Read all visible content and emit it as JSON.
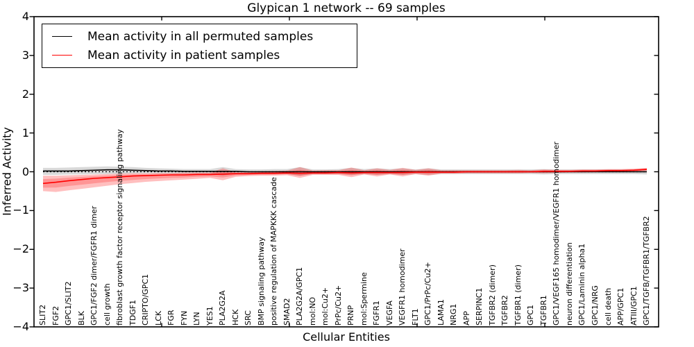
{
  "chart_data": {
    "type": "line",
    "title": "Glypican 1 network -- 69 samples",
    "xlabel": "Cellular Entities",
    "ylabel": "Inferred Activity",
    "ylim": [
      -4,
      4
    ],
    "yticks": [
      4,
      3,
      2,
      1,
      0,
      -1,
      -2,
      -3,
      -4
    ],
    "ytick_labels": [
      "4",
      "3",
      "2",
      "1",
      "0",
      "−1",
      "−2",
      "−3",
      "−4"
    ],
    "grid": false,
    "legend_position": "upper left",
    "zero_line": {
      "y": 0,
      "style": "dotted",
      "color": "#000000"
    },
    "categories": [
      "SLIT2",
      "FGF2",
      "GPC1/SLIT2",
      "BLK",
      "GPC1/FGF2 dimer/FGFR1 dimer",
      "cell growth",
      "fibroblast growth factor receptor signaling pathway",
      "TDGF1",
      "CRIPTO/GPC1",
      "LCK",
      "FGR",
      "FYN",
      "LYN",
      "YES1",
      "PLA2G2A",
      "HCK",
      "SRC",
      "BMP signaling pathway",
      "positive regulation of MAPKKK cascade",
      "SMAD2",
      "PLA2G2A/GPC1",
      "mol:NO",
      "mol:Cu2+",
      "PrPc/Cu2+",
      "PRNP",
      "mol:Spermine",
      "FGFR1",
      "VEGFA",
      "VEGFR1 homodimer",
      "FLT1",
      "GPC1/PrPc/Cu2+",
      "LAMA1",
      "NRG1",
      "APP",
      "SERPINC1",
      "TGFBR2 (dimer)",
      "TGFBR2",
      "TGFBR1 (dimer)",
      "GPC1",
      "TGFBR1",
      "GPC1/VEGF165 homodimer/VEGFR1 homodimer",
      "neuron differentiation",
      "GPC1/Laminin alpha1",
      "GPC1/NRG",
      "cell death",
      "APP/GPC1",
      "ATIII/GPC1",
      "GPC1/TGFB/TGFBR1/TGFBR2"
    ],
    "series": [
      {
        "name": "Mean activity in all permuted samples",
        "color": "#000000",
        "band_color": "rgba(0,0,0,0.15)",
        "values": [
          0.02,
          0.02,
          0.02,
          0.03,
          0.04,
          0.05,
          0.05,
          0.04,
          0.03,
          0.02,
          0.02,
          0.01,
          0.01,
          0.01,
          0.01,
          0.01,
          0,
          0,
          0,
          0,
          0,
          0,
          0,
          0,
          0,
          0,
          0,
          0,
          0,
          0,
          0,
          0,
          0,
          0,
          0,
          0,
          0,
          0,
          0,
          0,
          0,
          0,
          0,
          0,
          0,
          0,
          0,
          0
        ],
        "band_upper": [
          0.1,
          0.1,
          0.11,
          0.12,
          0.13,
          0.14,
          0.13,
          0.12,
          0.1,
          0.09,
          0.08,
          0.07,
          0.07,
          0.07,
          0.12,
          0.07,
          0.06,
          0.06,
          0.07,
          0.07,
          0.12,
          0.06,
          0.06,
          0.07,
          0.1,
          0.07,
          0.09,
          0.07,
          0.09,
          0.06,
          0.09,
          0.06,
          0.06,
          0.06,
          0.06,
          0.06,
          0.06,
          0.06,
          0.06,
          0.07,
          0.06,
          0.06,
          0.06,
          0.06,
          0.06,
          0.06,
          0.06,
          0.08
        ],
        "band_lower": [
          -0.08,
          -0.08,
          -0.07,
          -0.07,
          -0.06,
          -0.06,
          -0.06,
          -0.05,
          -0.05,
          -0.05,
          -0.05,
          -0.05,
          -0.05,
          -0.05,
          -0.1,
          -0.05,
          -0.06,
          -0.06,
          -0.06,
          -0.06,
          -0.1,
          -0.06,
          -0.06,
          -0.06,
          -0.08,
          -0.06,
          -0.08,
          -0.06,
          -0.08,
          -0.06,
          -0.08,
          -0.06,
          -0.06,
          -0.06,
          -0.06,
          -0.06,
          -0.06,
          -0.06,
          -0.06,
          -0.07,
          -0.06,
          -0.06,
          -0.06,
          -0.06,
          -0.06,
          -0.06,
          -0.06,
          -0.07
        ]
      },
      {
        "name": "Mean activity in patient samples",
        "color": "#ff0000",
        "band_color": "rgba(255,0,0,0.25)",
        "values": [
          -0.3,
          -0.27,
          -0.23,
          -0.2,
          -0.17,
          -0.15,
          -0.13,
          -0.11,
          -0.1,
          -0.09,
          -0.08,
          -0.08,
          -0.07,
          -0.07,
          -0.06,
          -0.05,
          -0.05,
          -0.04,
          -0.04,
          -0.03,
          -0.04,
          -0.03,
          -0.03,
          -0.02,
          -0.03,
          -0.02,
          -0.02,
          -0.02,
          -0.02,
          -0.01,
          -0.01,
          -0.01,
          -0.01,
          0,
          0,
          0,
          0,
          0,
          0,
          0.01,
          0.01,
          0.01,
          0.02,
          0.02,
          0.03,
          0.03,
          0.04,
          0.06
        ],
        "band_upper": [
          -0.1,
          -0.1,
          -0.09,
          -0.08,
          -0.07,
          -0.06,
          -0.05,
          -0.04,
          -0.04,
          -0.03,
          -0.03,
          -0.02,
          -0.02,
          -0.02,
          0.09,
          -0.01,
          0,
          0.01,
          0.02,
          0.03,
          0.12,
          0.03,
          0.04,
          0.04,
          0.11,
          0.04,
          0.09,
          0.05,
          0.1,
          0.05,
          0.09,
          0.04,
          0.04,
          0.04,
          0.04,
          0.04,
          0.04,
          0.05,
          0.04,
          0.06,
          0.05,
          0.05,
          0.06,
          0.06,
          0.07,
          0.07,
          0.08,
          0.1
        ],
        "band_lower": [
          -0.5,
          -0.52,
          -0.48,
          -0.44,
          -0.4,
          -0.36,
          -0.32,
          -0.29,
          -0.26,
          -0.24,
          -0.22,
          -0.2,
          -0.18,
          -0.16,
          -0.22,
          -0.13,
          -0.11,
          -0.1,
          -0.1,
          -0.09,
          -0.16,
          -0.08,
          -0.08,
          -0.08,
          -0.14,
          -0.07,
          -0.12,
          -0.07,
          -0.12,
          -0.06,
          -0.1,
          -0.05,
          -0.05,
          -0.04,
          -0.04,
          -0.04,
          -0.04,
          -0.04,
          -0.03,
          -0.04,
          -0.03,
          -0.02,
          -0.02,
          -0.01,
          -0.01,
          0,
          0,
          0.02
        ]
      }
    ]
  }
}
